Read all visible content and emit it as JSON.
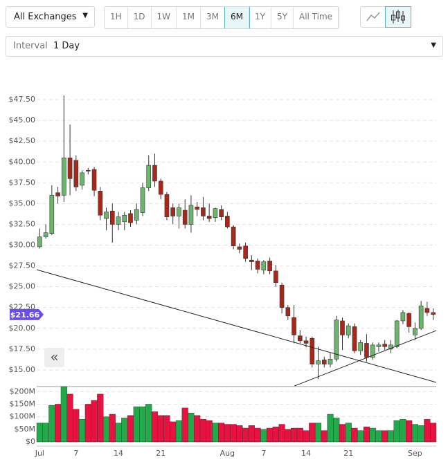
{
  "toolbar": {
    "exchange": "All Exchanges",
    "ranges": [
      "1H",
      "1D",
      "1W",
      "1M",
      "3M",
      "6M",
      "1Y",
      "5Y",
      "All Time"
    ],
    "selected_range": 5,
    "interval_label": "Interval",
    "interval_value": "1 Day"
  },
  "scroll_button": "«",
  "chart_data": [
    {
      "type": "candlestick",
      "up_color": "#6db56d",
      "down_color": "#a8271b",
      "grid": true,
      "ylim": [
        13,
        49
      ],
      "yticks": [
        {
          "value": 15,
          "label": "$15.00"
        },
        {
          "value": 17.5,
          "label": "$17.50"
        },
        {
          "value": 20,
          "label": "$20.00"
        },
        {
          "value": 22.5,
          "label": "$22.50"
        },
        {
          "value": 25,
          "label": "$25.00"
        },
        {
          "value": 27.5,
          "label": "$27.50"
        },
        {
          "value": 30,
          "label": "$30.00"
        },
        {
          "value": 32.5,
          "label": "$32.50"
        },
        {
          "value": 35,
          "label": "$35.00"
        },
        {
          "value": 37.5,
          "label": "$37.50"
        },
        {
          "value": 40,
          "label": "$40.00"
        },
        {
          "value": 42.5,
          "label": "$42.50"
        },
        {
          "value": 45,
          "label": "$45.00"
        },
        {
          "value": 47.5,
          "label": "$47.50"
        }
      ],
      "open": [
        29.8,
        31.0,
        31.4,
        36.3,
        36.0,
        40.5,
        40.2,
        37.2,
        39.0,
        39.1,
        36.5,
        33.2,
        34.1,
        32.5,
        32.8,
        33.8,
        33.0,
        33.9,
        36.9,
        39.6,
        37.7,
        36.1,
        34.5,
        33.5,
        34.2,
        32.5,
        34.6,
        34.5,
        33.5,
        33.3,
        34.3,
        33.5,
        32.2,
        29.8,
        29.9,
        28.2,
        28.1,
        27.0,
        28.1,
        26.9,
        25.2,
        22.5,
        21.3,
        19.1,
        18.5,
        18.8,
        15.7,
        16.2,
        15.7,
        16.3,
        20.9,
        19.2,
        20.2,
        17.3,
        18.2,
        16.5,
        17.8,
        18.1,
        17.5,
        17.8,
        20.9,
        21.8,
        19.2,
        20.0,
        22.4,
        21.9
      ],
      "high": [
        32.0,
        32.5,
        37.2,
        37.0,
        48.0,
        44.5,
        40.8,
        39.0,
        39.3,
        39.4,
        37.0,
        34.5,
        35.0,
        34.0,
        34.0,
        34.2,
        35.0,
        37.5,
        40.8,
        41.0,
        38.0,
        36.4,
        35.0,
        35.0,
        35.5,
        36.0,
        35.2,
        35.8,
        35.0,
        34.5,
        34.8,
        34.0,
        32.4,
        30.2,
        30.3,
        28.8,
        28.4,
        28.2,
        28.5,
        27.6,
        25.5,
        22.8,
        22.8,
        19.8,
        19.0,
        19.0,
        17.8,
        16.6,
        17.0,
        21.5,
        21.3,
        20.6,
        20.6,
        18.6,
        19.3,
        18.3,
        18.3,
        18.6,
        18.6,
        21.0,
        22.2,
        21.9,
        20.7,
        23.3,
        23.2,
        22.4
      ],
      "low": [
        29.6,
        30.8,
        31.2,
        35.0,
        35.2,
        36.0,
        36.5,
        36.7,
        38.5,
        35.9,
        33.0,
        31.8,
        30.3,
        31.8,
        31.8,
        32.2,
        32.5,
        33.5,
        36.5,
        37.0,
        35.5,
        33.0,
        32.5,
        32.0,
        32.0,
        31.5,
        33.5,
        33.0,
        32.8,
        32.8,
        33.0,
        32.0,
        29.5,
        29.0,
        28.0,
        27.0,
        26.6,
        26.5,
        26.5,
        25.0,
        21.8,
        21.0,
        18.2,
        18.2,
        17.7,
        15.3,
        13.9,
        15.3,
        15.3,
        16.0,
        17.4,
        18.8,
        17.0,
        16.8,
        16.0,
        16.2,
        17.2,
        17.4,
        17.0,
        17.6,
        20.5,
        19.5,
        18.6,
        19.8,
        21.5,
        21.0
      ],
      "close": [
        31.0,
        31.5,
        36.0,
        35.9,
        40.5,
        38.0,
        37.0,
        38.7,
        38.9,
        36.6,
        33.6,
        34.0,
        32.5,
        33.4,
        33.6,
        32.7,
        34.3,
        36.9,
        39.6,
        37.7,
        36.1,
        33.4,
        33.5,
        34.5,
        32.5,
        34.8,
        34.3,
        33.5,
        33.2,
        34.4,
        33.4,
        32.2,
        29.9,
        29.5,
        28.4,
        28.0,
        27.1,
        28.0,
        26.9,
        25.5,
        22.5,
        21.5,
        19.2,
        18.5,
        18.2,
        15.7,
        16.1,
        15.7,
        16.3,
        21.0,
        19.2,
        20.3,
        17.3,
        18.3,
        16.5,
        18.0,
        18.0,
        17.8,
        18.0,
        20.9,
        21.9,
        20.2,
        20.0,
        22.7,
        21.9,
        21.66
      ],
      "trendlines": [
        {
          "x": [
            -0.5,
            65.5
          ],
          "y": [
            27.05,
            13.5
          ]
        },
        {
          "x": [
            42.1,
            65.5
          ],
          "y": [
            13.08,
            19.73
          ]
        }
      ],
      "price_badge": {
        "value": 21.66,
        "label": "$21.66"
      }
    },
    {
      "type": "bar",
      "up_color": "#22a94a",
      "down_color": "#e6123f",
      "grid": true,
      "ylim": [
        0,
        220
      ],
      "yticks": [
        {
          "value": 0,
          "label": "$0"
        },
        {
          "value": 50,
          "label": "$50M"
        },
        {
          "value": 100,
          "label": "$100M"
        },
        {
          "value": 150,
          "label": "$150M"
        },
        {
          "value": 200,
          "label": "$200M"
        }
      ],
      "categories": [
        "Jul",
        null,
        null,
        null,
        null,
        null,
        "7",
        null,
        null,
        null,
        null,
        null,
        null,
        "14",
        null,
        null,
        null,
        null,
        null,
        null,
        "21",
        null,
        null,
        null,
        null,
        null,
        null,
        null,
        null,
        null,
        null,
        "Aug",
        null,
        null,
        null,
        null,
        null,
        "7",
        null,
        null,
        null,
        null,
        null,
        null,
        "14",
        null,
        null,
        null,
        null,
        null,
        null,
        "21",
        null,
        null,
        null,
        null,
        null,
        null,
        null,
        null,
        null,
        null,
        "Sep",
        null,
        null,
        null
      ],
      "values": [
        75,
        75,
        145,
        150,
        220,
        190,
        130,
        90,
        150,
        165,
        190,
        100,
        110,
        75,
        95,
        105,
        140,
        140,
        150,
        120,
        105,
        105,
        80,
        85,
        135,
        115,
        105,
        90,
        85,
        75,
        75,
        70,
        70,
        65,
        55,
        65,
        55,
        50,
        55,
        60,
        70,
        50,
        55,
        55,
        45,
        75,
        75,
        45,
        110,
        95,
        70,
        75,
        55,
        45,
        60,
        55,
        45,
        45,
        45,
        85,
        90,
        85,
        70,
        65,
        90,
        75
      ]
    }
  ]
}
